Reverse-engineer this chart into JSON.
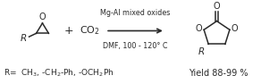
{
  "bg_color": "#ffffff",
  "text_color": "#2a2a2a",
  "arrow_color": "#2a2a2a",
  "catalyst_text": "Mg-Al mixed oxides",
  "conditions_text": "DMF, 100 - 120° C",
  "plus_text": "+",
  "co2_text": "CO$_2$",
  "r_group_text": "R=  CH$_3$, -CH$_2$-Ph, -OCH$_2$Ph",
  "yield_text": "Yield 88-99 %",
  "figsize": [
    2.92,
    0.94
  ],
  "dpi": 100
}
